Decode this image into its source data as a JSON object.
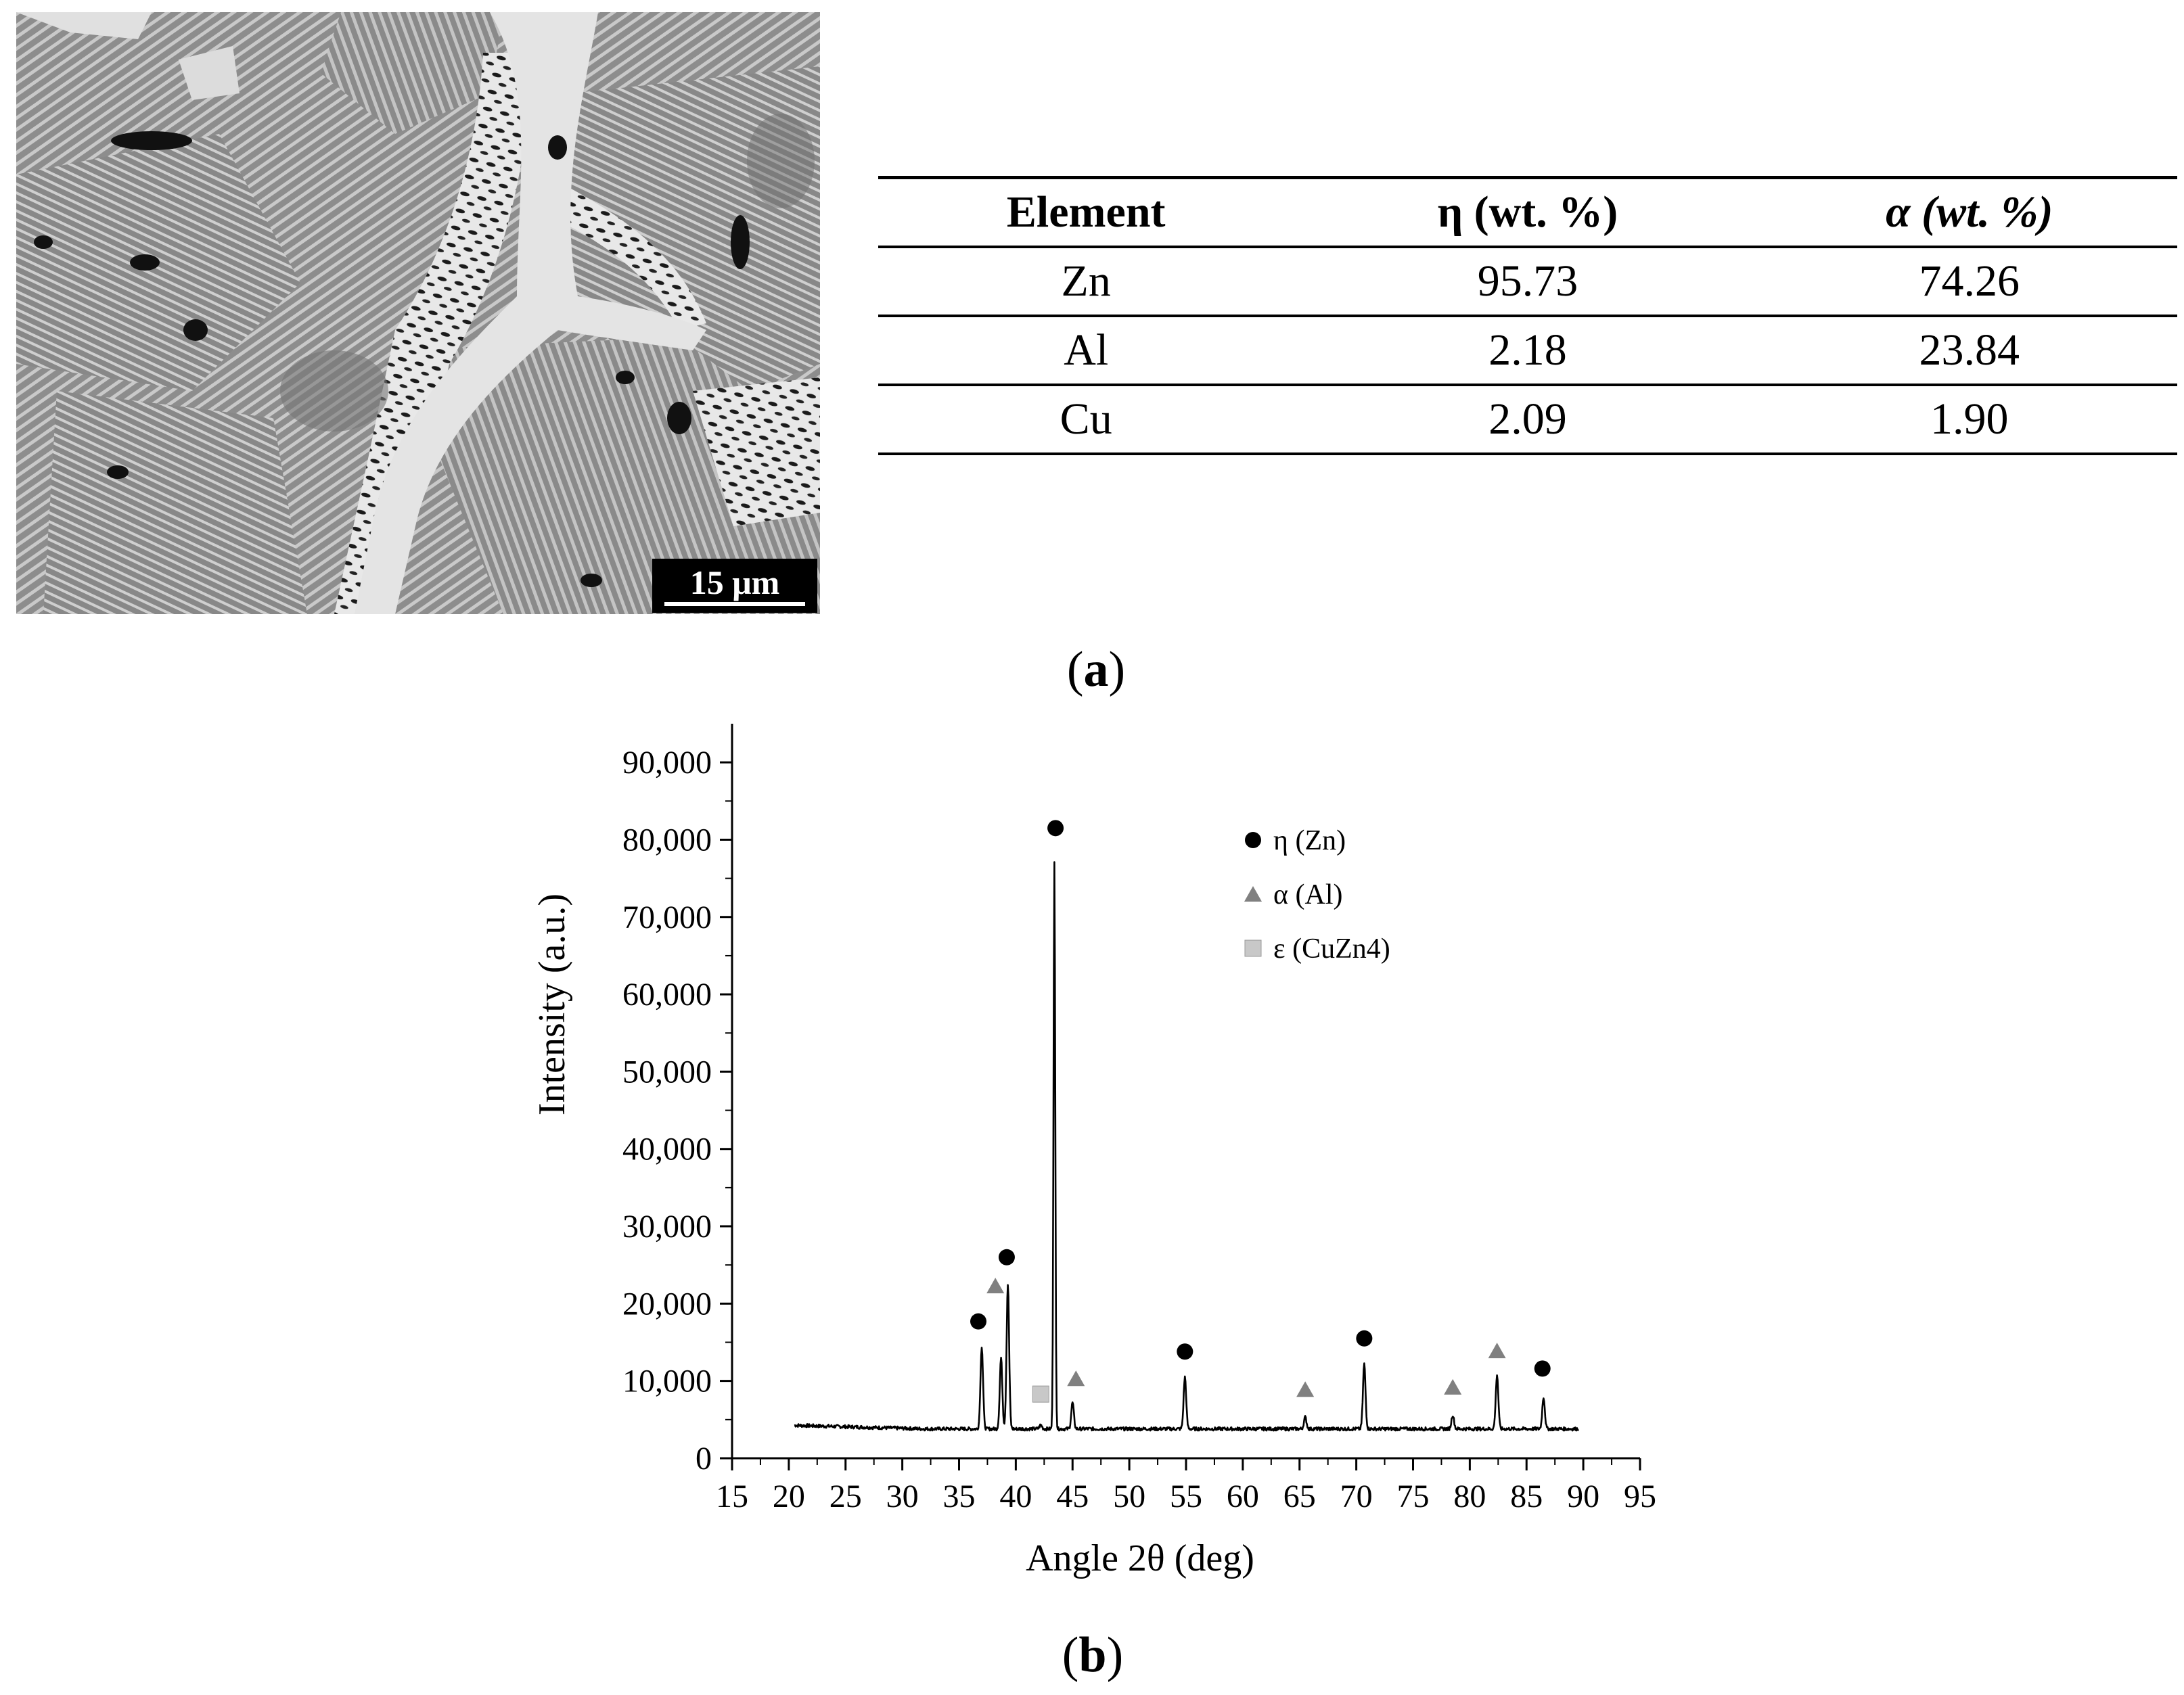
{
  "micrograph": {
    "scale_bar_label": "15 μm"
  },
  "composition_table": {
    "headers": [
      "Element",
      "η (wt. %)",
      "α (wt. %)"
    ],
    "rows": [
      [
        "Zn",
        "95.73",
        "74.26"
      ],
      [
        "Al",
        "2.18",
        "23.84"
      ],
      [
        "Cu",
        "2.09",
        "1.90"
      ]
    ]
  },
  "panel_labels": {
    "a": "a",
    "b": "b"
  },
  "chart_data": {
    "type": "line",
    "title": "",
    "xlabel": "Angle 2θ (deg)",
    "ylabel": "Intensity (a.u.)",
    "xlim": [
      15,
      95
    ],
    "ylim": [
      0,
      95000
    ],
    "xticks": [
      "15",
      "20",
      "25",
      "30",
      "35",
      "40",
      "45",
      "50",
      "55",
      "60",
      "65",
      "70",
      "75",
      "80",
      "85",
      "90",
      "95"
    ],
    "yticks": [
      "0",
      "10,000",
      "20,000",
      "30,000",
      "40,000",
      "50,000",
      "60,000",
      "70,000",
      "80,000",
      "90,000"
    ],
    "grid": false,
    "legend_position": "top-right",
    "background": 3800,
    "series": [
      {
        "peaks": [
          {
            "x": 37.0,
            "y": 14500
          },
          {
            "x": 38.7,
            "y": 13000
          },
          {
            "x": 39.3,
            "y": 22500
          },
          {
            "x": 42.2,
            "y": 4300
          },
          {
            "x": 43.4,
            "y": 77000
          },
          {
            "x": 45.0,
            "y": 7200
          },
          {
            "x": 54.9,
            "y": 10500
          },
          {
            "x": 65.5,
            "y": 5300
          },
          {
            "x": 70.7,
            "y": 12200
          },
          {
            "x": 78.5,
            "y": 5600
          },
          {
            "x": 82.4,
            "y": 10800
          },
          {
            "x": 86.5,
            "y": 7900
          }
        ]
      }
    ],
    "legend": [
      {
        "label": "η (Zn)",
        "marker": "circle",
        "color": "#000000"
      },
      {
        "label": "α (Al)",
        "marker": "triangle",
        "color": "#808080"
      },
      {
        "label": "ε (CuZn4)",
        "marker": "square",
        "color": "#c8c8c8"
      }
    ],
    "phase_markers": [
      {
        "phase": "η",
        "x": 36.7,
        "y": 17700
      },
      {
        "phase": "η",
        "x": 39.2,
        "y": 26000
      },
      {
        "phase": "η",
        "x": 43.5,
        "y": 81500
      },
      {
        "phase": "η",
        "x": 54.9,
        "y": 13800
      },
      {
        "phase": "η",
        "x": 70.7,
        "y": 15500
      },
      {
        "phase": "η",
        "x": 86.4,
        "y": 11600
      },
      {
        "phase": "α",
        "x": 38.2,
        "y": 22300
      },
      {
        "phase": "α",
        "x": 45.3,
        "y": 10300
      },
      {
        "phase": "α",
        "x": 65.5,
        "y": 8900
      },
      {
        "phase": "α",
        "x": 78.5,
        "y": 9200
      },
      {
        "phase": "α",
        "x": 82.4,
        "y": 13900
      },
      {
        "phase": "ε",
        "x": 42.2,
        "y": 8300
      }
    ],
    "colors": {
      "line": "#000000",
      "eta": "#000000",
      "alpha": "#808080",
      "epsilon": "#c8c8c8"
    }
  }
}
